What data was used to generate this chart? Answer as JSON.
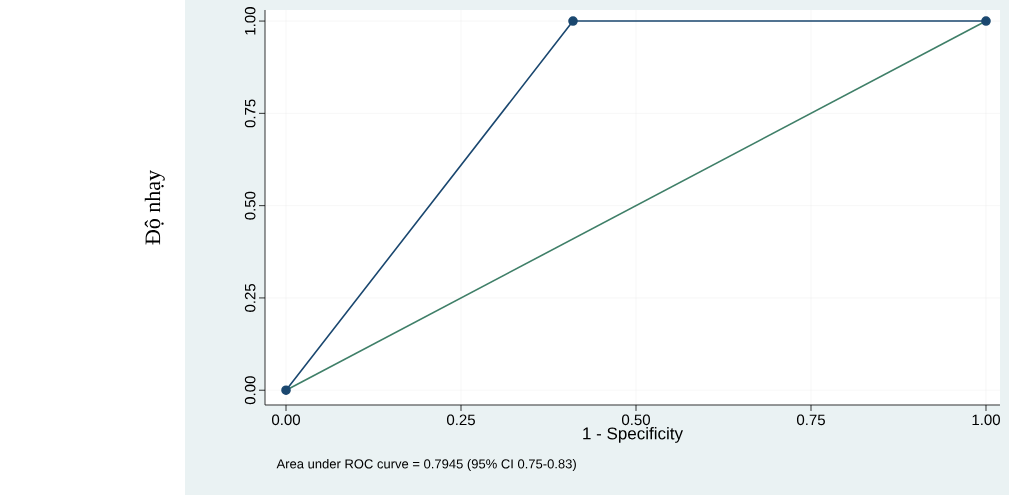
{
  "chart_data": {
    "type": "line",
    "xlabel": "1 - Specificity",
    "ylabel": "Độ nhạy",
    "xlim": [
      -0.03,
      1.02
    ],
    "ylim": [
      -0.04,
      1.03
    ],
    "xticks": [
      {
        "value": 0,
        "label": "0.00"
      },
      {
        "value": 0.25,
        "label": "0.25"
      },
      {
        "value": 0.5,
        "label": "0.50"
      },
      {
        "value": 0.75,
        "label": "0.75"
      },
      {
        "value": 1,
        "label": "1.00"
      }
    ],
    "yticks": [
      {
        "value": 0,
        "label": "0.00"
      },
      {
        "value": 0.25,
        "label": "0.25"
      },
      {
        "value": 0.5,
        "label": "0.50"
      },
      {
        "value": 0.75,
        "label": "0.75"
      },
      {
        "value": 1,
        "label": "1.00"
      }
    ],
    "grid": true,
    "series": [
      {
        "color": "#1a476f",
        "marker": "circle",
        "x": [
          0,
          0.41,
          1
        ],
        "values": [
          0,
          1,
          1
        ]
      },
      {
        "color": "#3f7f68",
        "marker": "none",
        "x": [
          0,
          1
        ],
        "values": [
          0,
          1
        ]
      }
    ],
    "annotations": [
      "Area under ROC curve = 0.7945 (95% CI 0.75-0.83)"
    ]
  }
}
